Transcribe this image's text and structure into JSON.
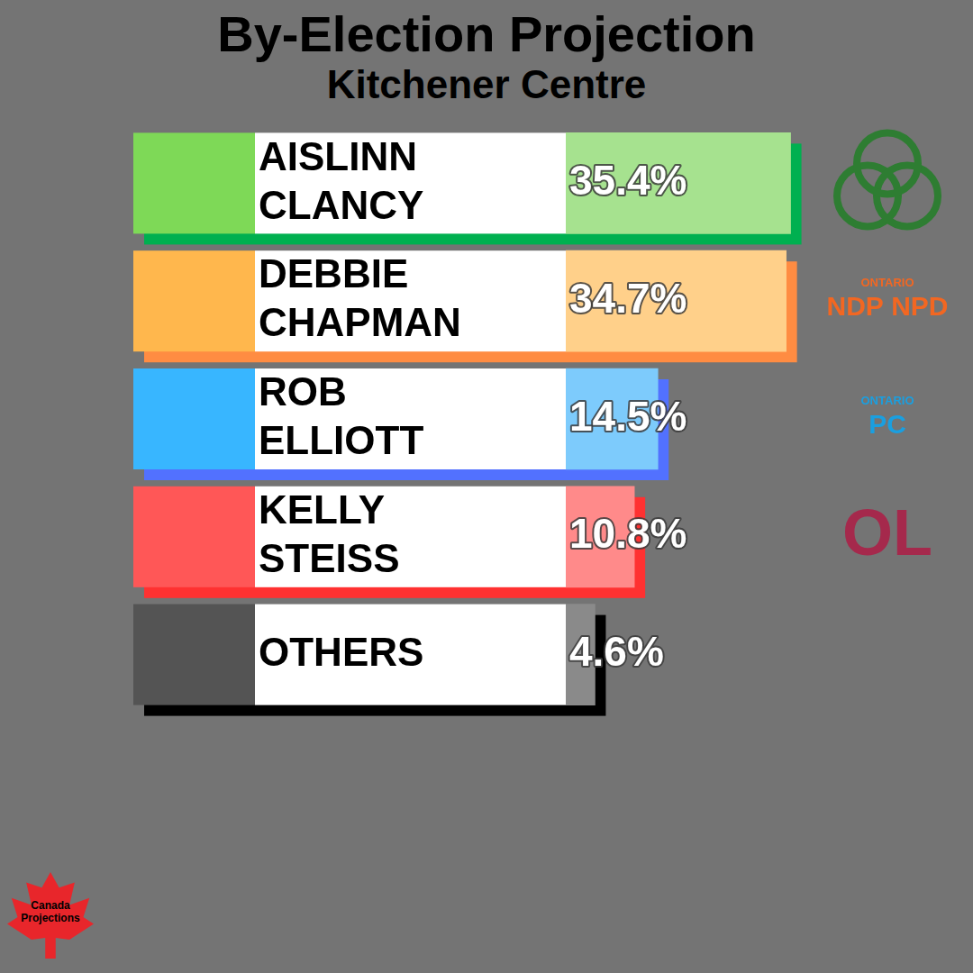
{
  "chart_data": {
    "type": "bar",
    "orientation": "horizontal",
    "title": "By-Election Projection",
    "subtitle": "Kitchener Centre",
    "categories": [
      "AISLINN CLANCY",
      "DEBBIE CHAPMAN",
      "ROB ELLIOTT",
      "KELLY STEISS",
      "OTHERS"
    ],
    "values": [
      35.4,
      34.7,
      14.5,
      10.8,
      4.6
    ],
    "value_labels": [
      "35.4%",
      "34.7%",
      "14.5%",
      "10.8%",
      "4.6%"
    ],
    "colors": [
      "#a6e28f",
      "#ffd08a",
      "#7dcbfc",
      "#ff8a8a",
      "#8a8a8a"
    ],
    "data_labels": true,
    "grid": false,
    "tick_labels": false
  },
  "party_logos": [
    null,
    [
      "ONTARIO",
      "NDP NPD"
    ],
    [
      "ONTARIO",
      "PC"
    ],
    [
      "OL"
    ],
    null
  ],
  "source": "Canada Projections"
}
